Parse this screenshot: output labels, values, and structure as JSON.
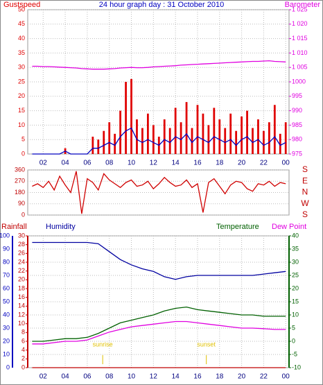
{
  "chart_data": [
    {
      "type": "combo",
      "title": "24 hour graph day : 31 October 2010",
      "x": [
        1,
        1.5,
        2,
        2.5,
        3,
        3.5,
        4,
        4.5,
        5,
        5.5,
        6,
        6.5,
        7,
        7.5,
        8,
        8.5,
        9,
        9.5,
        10,
        10.5,
        11,
        11.5,
        12,
        12.5,
        13,
        13.5,
        14,
        14.5,
        15,
        15.5,
        16,
        16.5,
        17,
        17.5,
        18,
        18.5,
        19,
        19.5,
        20,
        20.5,
        21,
        21.5,
        22,
        22.5,
        23,
        23.5,
        24
      ],
      "xlim": [
        0.6,
        24.3
      ],
      "xticks": [
        {
          "value": 2,
          "label": "02"
        },
        {
          "value": 4,
          "label": "04"
        },
        {
          "value": 6,
          "label": "06"
        },
        {
          "value": 8,
          "label": "08"
        },
        10,
        12,
        14,
        16,
        18,
        20,
        22,
        {
          "value": 24,
          "label": "00"
        }
      ],
      "ylim": [
        0,
        50
      ],
      "yticks": [
        0,
        5,
        10,
        15,
        20,
        25,
        30,
        35,
        40,
        45,
        50
      ],
      "y2lim": [
        975,
        1025
      ],
      "y2ticks": [
        975,
        980,
        985,
        990,
        995,
        1000,
        {
          "value": 1005,
          "label": "1 005"
        },
        {
          "value": 1010,
          "label": "1 010"
        },
        {
          "value": 1015,
          "label": "1 015"
        },
        {
          "value": 1020,
          "label": "1 020"
        },
        {
          "value": 1025,
          "label": "1 025"
        }
      ],
      "grid": true,
      "series": [
        {
          "name": "Gustspeed",
          "color": "#e00000",
          "style": "bar",
          "values": [
            0,
            0,
            0,
            0,
            0,
            0,
            2,
            0,
            0,
            0,
            0,
            6,
            5,
            8,
            11,
            7,
            15,
            25,
            26,
            12,
            9,
            14,
            10,
            6,
            12,
            9,
            16,
            11,
            18,
            9,
            17,
            14,
            10,
            16,
            12,
            9,
            14,
            8,
            13,
            15,
            9,
            12,
            8,
            11,
            17,
            7,
            11
          ]
        },
        {
          "color": "#0000c0",
          "style": "line",
          "values": [
            0,
            0,
            0,
            0,
            0,
            0,
            1,
            0,
            0,
            0,
            0,
            2,
            2,
            3,
            4,
            3,
            6,
            8,
            9,
            5,
            4,
            5,
            4,
            3,
            5,
            4,
            6,
            5,
            7,
            4,
            6,
            5,
            4,
            6,
            5,
            4,
            5,
            3,
            5,
            6,
            4,
            5,
            3,
            4,
            6,
            3,
            4
          ]
        },
        {
          "name": "Barometer",
          "color": "#e000e0",
          "style": "line",
          "axis": "y2",
          "values": [
            1005.4,
            1005.4,
            1005.3,
            1005.3,
            1005.2,
            1005.1,
            1005.0,
            1004.9,
            1004.8,
            1004.6,
            1004.5,
            1004.4,
            1004.4,
            1004.4,
            1004.5,
            1004.6,
            1004.8,
            1004.9,
            1005.0,
            1004.9,
            1004.9,
            1005.0,
            1005.2,
            1005.3,
            1005.4,
            1005.5,
            1005.6,
            1005.8,
            1005.9,
            1006.0,
            1006.1,
            1006.2,
            1006.3,
            1006.4,
            1006.5,
            1006.6,
            1006.7,
            1006.8,
            1006.9,
            1007.0,
            1007.1,
            1007.1,
            1007.2,
            1007.3,
            1007.1,
            1007.0,
            1006.9
          ]
        }
      ]
    },
    {
      "type": "line",
      "x": [
        1,
        1.5,
        2,
        2.5,
        3,
        3.5,
        4,
        4.5,
        5,
        5.5,
        6,
        6.5,
        7,
        7.5,
        8,
        8.5,
        9,
        9.5,
        10,
        10.5,
        11,
        11.5,
        12,
        12.5,
        13,
        13.5,
        14,
        14.5,
        15,
        15.5,
        16,
        16.5,
        17,
        17.5,
        18,
        18.5,
        19,
        19.5,
        20,
        20.5,
        21,
        21.5,
        22,
        22.5,
        23,
        23.5,
        24
      ],
      "xlim": [
        0.6,
        24.3
      ],
      "ylim": [
        0,
        360
      ],
      "yticks": [
        0,
        90,
        180,
        270,
        360
      ],
      "direction_labels": [
        "S",
        "E",
        "N",
        "W",
        "S"
      ],
      "grid": true,
      "series": [
        {
          "color": "#d00000",
          "style": "line",
          "values": [
            230,
            250,
            220,
            270,
            200,
            310,
            240,
            180,
            350,
            10,
            290,
            260,
            200,
            330,
            280,
            250,
            220,
            260,
            280,
            230,
            240,
            270,
            210,
            250,
            300,
            260,
            230,
            240,
            280,
            220,
            250,
            20,
            260,
            290,
            230,
            170,
            240,
            270,
            260,
            210,
            190,
            250,
            240,
            270,
            230,
            260,
            250
          ]
        }
      ]
    },
    {
      "type": "combo",
      "x": [
        1,
        2,
        3,
        4,
        5,
        6,
        7,
        8,
        9,
        10,
        11,
        12,
        13,
        14,
        15,
        16,
        17,
        18,
        19,
        20,
        21,
        22,
        23,
        24
      ],
      "xlim": [
        0.6,
        24.3
      ],
      "xticks": [
        {
          "value": 2,
          "label": "02"
        },
        {
          "value": 4,
          "label": "04"
        },
        {
          "value": 6,
          "label": "06"
        },
        {
          "value": 8,
          "label": "08"
        },
        10,
        12,
        14,
        16,
        18,
        20,
        22,
        {
          "value": 24,
          "label": "00"
        }
      ],
      "ylim": [
        0,
        100
      ],
      "yticks": [
        0,
        10,
        20,
        30,
        40,
        50,
        60,
        70,
        80,
        90,
        100
      ],
      "y2lim": [
        -10,
        40
      ],
      "y2ticks": [
        -10,
        -5,
        0,
        5,
        10,
        15,
        20,
        25,
        30,
        35,
        40
      ],
      "y3lim": [
        0,
        30
      ],
      "y3ticks": [
        0,
        2,
        4,
        6,
        8,
        10,
        12,
        14,
        16,
        18,
        20,
        22,
        24,
        26,
        28,
        30
      ],
      "grid": true,
      "annotations": [
        {
          "text": "sunrise",
          "x": 7.4
        },
        {
          "text": "sunset",
          "x": 16.8
        }
      ],
      "series": [
        {
          "name": "Rainfall",
          "color": "#c00000",
          "style": "line",
          "axis": "y3",
          "values": [
            0,
            0,
            0,
            0,
            0,
            0,
            0,
            0,
            0,
            0,
            0,
            0,
            0,
            0,
            0,
            0,
            0,
            0,
            0,
            0,
            0,
            0,
            0,
            0
          ]
        },
        {
          "name": "Humidity",
          "color": "#0000a0",
          "style": "line",
          "values": [
            95,
            95,
            95,
            95,
            95,
            95,
            94,
            88,
            82,
            78,
            75,
            73,
            69,
            67,
            69,
            70,
            70,
            70,
            70,
            70,
            70,
            71,
            72,
            73
          ]
        },
        {
          "name": "Temperature",
          "color": "#006000",
          "style": "line",
          "axis": "y2",
          "values": [
            0,
            0,
            0.5,
            1,
            1,
            1.5,
            3,
            5,
            7,
            8,
            9,
            10,
            11.5,
            12.5,
            13,
            12,
            11.5,
            11,
            10.5,
            10,
            10,
            9.5,
            9.5,
            9.5
          ]
        },
        {
          "name": "Dew Point",
          "color": "#e000e0",
          "style": "line",
          "axis": "y2",
          "values": [
            -1,
            -1,
            -0.5,
            0,
            0,
            0.5,
            2,
            3.5,
            4.5,
            5.5,
            6,
            6.5,
            7,
            7.5,
            7.5,
            7,
            6.5,
            6,
            5.5,
            5,
            5,
            4.8,
            4.5,
            4.5
          ]
        }
      ]
    }
  ]
}
